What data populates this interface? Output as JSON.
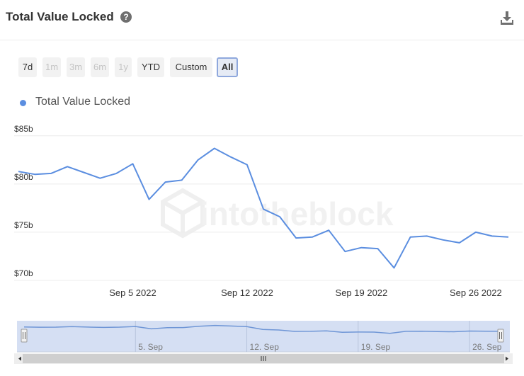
{
  "header": {
    "title": "Total Value Locked",
    "help_icon": "question-circle-icon",
    "download_icon": "download-icon"
  },
  "range_buttons": [
    {
      "label": "7d",
      "state": "enabled"
    },
    {
      "label": "1m",
      "state": "disabled"
    },
    {
      "label": "3m",
      "state": "disabled"
    },
    {
      "label": "6m",
      "state": "disabled"
    },
    {
      "label": "1y",
      "state": "disabled"
    },
    {
      "label": "YTD",
      "state": "enabled"
    },
    {
      "label": "Custom",
      "state": "enabled"
    },
    {
      "label": "All",
      "state": "active"
    }
  ],
  "watermark": "intotheblock",
  "colors": {
    "line": "#5b8ee0",
    "navigator_fill": "#d5dff3",
    "navigator_line": "#6f96d6",
    "grid": "#ececec"
  },
  "chart_data": {
    "type": "line",
    "series": [
      {
        "name": "Total Value Locked",
        "x": [
          "2022-08-29",
          "2022-08-30",
          "2022-08-31",
          "2022-09-01",
          "2022-09-02",
          "2022-09-03",
          "2022-09-04",
          "2022-09-05",
          "2022-09-06",
          "2022-09-07",
          "2022-09-08",
          "2022-09-09",
          "2022-09-10",
          "2022-09-11",
          "2022-09-12",
          "2022-09-13",
          "2022-09-14",
          "2022-09-15",
          "2022-09-16",
          "2022-09-17",
          "2022-09-18",
          "2022-09-19",
          "2022-09-20",
          "2022-09-21",
          "2022-09-22",
          "2022-09-23",
          "2022-09-24",
          "2022-09-25",
          "2022-09-26",
          "2022-09-27",
          "2022-09-28"
        ],
        "values": [
          81.3,
          81.0,
          81.1,
          81.8,
          81.2,
          80.6,
          81.1,
          82.1,
          78.4,
          80.2,
          80.4,
          82.5,
          83.7,
          82.8,
          82.0,
          77.4,
          76.6,
          74.4,
          74.5,
          75.2,
          73.0,
          73.4,
          73.3,
          71.3,
          74.5,
          74.6,
          74.2,
          73.9,
          75.0,
          74.6,
          74.5
        ]
      }
    ],
    "y_ticks": [
      70,
      75,
      80,
      85
    ],
    "y_tick_labels": [
      "$70b",
      "$75b",
      "$80b",
      "$85b"
    ],
    "ylim": [
      70,
      86.6
    ],
    "x_ticks": [
      "2022-09-05",
      "2022-09-12",
      "2022-09-19",
      "2022-09-26"
    ],
    "x_tick_labels": [
      "Sep 5 2022",
      "Sep 12 2022",
      "Sep 19 2022",
      "Sep 26 2022"
    ],
    "navigator_tick_labels": [
      "5. Sep",
      "12. Sep",
      "19. Sep",
      "26. Sep"
    ],
    "grid": true,
    "legend_position": "top-left"
  }
}
